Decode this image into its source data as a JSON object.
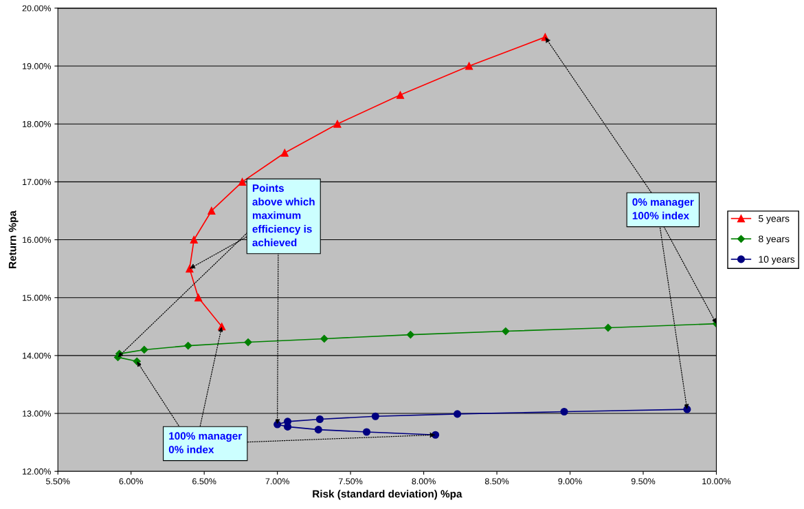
{
  "chart_data": {
    "type": "line",
    "xlabel": "Risk (standard deviation) %pa",
    "ylabel": "Return %pa",
    "series": [
      {
        "name": "5 years",
        "color": "#ff0000",
        "marker": "triangle",
        "x": [
          6.62,
          6.46,
          6.4,
          6.43,
          6.55,
          6.76,
          7.05,
          7.41,
          7.84,
          8.31,
          8.83
        ],
        "values": [
          14.5,
          15.0,
          15.5,
          16.0,
          16.5,
          17.0,
          17.5,
          18.0,
          18.5,
          19.0,
          19.5
        ]
      },
      {
        "name": "8 years",
        "color": "#008000",
        "marker": "diamond",
        "x": [
          6.04,
          5.91,
          5.92,
          6.09,
          6.39,
          6.8,
          7.32,
          7.91,
          8.56,
          9.26,
          10.0
        ],
        "values": [
          13.9,
          13.97,
          14.03,
          14.1,
          14.17,
          14.23,
          14.29,
          14.36,
          14.42,
          14.48,
          14.55
        ]
      },
      {
        "name": "10 years",
        "color": "#000080",
        "marker": "circle",
        "x": [
          8.08,
          7.61,
          7.28,
          7.07,
          7.0,
          7.07,
          7.29,
          7.67,
          8.23,
          8.96,
          9.8
        ],
        "values": [
          12.63,
          12.68,
          12.72,
          12.77,
          12.81,
          12.86,
          12.9,
          12.95,
          12.99,
          13.03,
          13.07
        ]
      }
    ],
    "xlim": [
      5.5,
      10.0
    ],
    "xticks": [
      {
        "value": 5.5,
        "label": "5.50%"
      },
      {
        "value": 6.0,
        "label": "6.00%"
      },
      {
        "value": 6.5,
        "label": "6.50%"
      },
      {
        "value": 7.0,
        "label": "7.00%"
      },
      {
        "value": 7.5,
        "label": "7.50%"
      },
      {
        "value": 8.0,
        "label": "8.00%"
      },
      {
        "value": 8.5,
        "label": "8.50%"
      },
      {
        "value": 9.0,
        "label": "9.00%"
      },
      {
        "value": 9.5,
        "label": "9.50%"
      },
      {
        "value": 10.0,
        "label": "10.00%"
      }
    ],
    "ylim": [
      12.0,
      20.0
    ],
    "yticks": [
      {
        "value": 12,
        "label": "12.00%"
      },
      {
        "value": 13,
        "label": "13.00%"
      },
      {
        "value": 14,
        "label": "14.00%"
      },
      {
        "value": 15,
        "label": "15.00%"
      },
      {
        "value": 16,
        "label": "16.00%"
      },
      {
        "value": 17,
        "label": "17.00%"
      },
      {
        "value": 18,
        "label": "18.00%"
      },
      {
        "value": 19,
        "label": "19.00%"
      },
      {
        "value": 20,
        "label": "20.00%"
      }
    ],
    "grid": "y",
    "legend": "right",
    "annotations": [
      {
        "text": "Points\nabove which\nmaximum\nefficiency is\nachieved",
        "x": 6.4,
        "y": 15.5
      },
      {
        "text": "0% manager\n100% index",
        "x": 8.83,
        "y": 19.5
      },
      {
        "text": "100% manager\n0% index",
        "x": 8.08,
        "y": 12.63
      }
    ]
  }
}
